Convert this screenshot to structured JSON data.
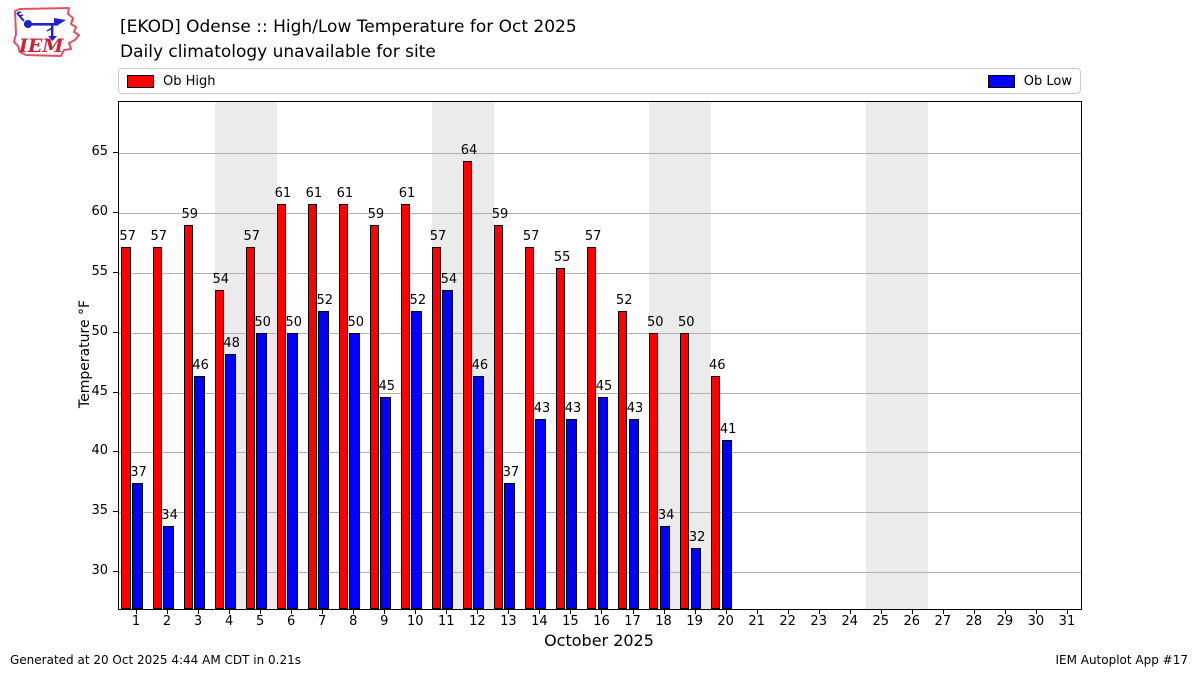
{
  "header": {
    "title": "[EKOD] Odense :: High/Low Temperature for Oct 2025",
    "subtitle": "Daily climatology unavailable for site"
  },
  "logo": {
    "text": "IEM"
  },
  "legend": {
    "high_label": "Ob High",
    "low_label": "Ob Low"
  },
  "chart_data": {
    "type": "bar",
    "title": "[EKOD] Odense :: High/Low Temperature for Oct 2025",
    "subtitle": "Daily climatology unavailable for site",
    "xlabel": "October 2025",
    "ylabel": "Temperature °F",
    "legend_position": "top",
    "grid": "horizontal",
    "xlim": [
      0.42,
      31.42
    ],
    "ylim": [
      26.9,
      69.3
    ],
    "xticks": [
      1,
      2,
      3,
      4,
      5,
      6,
      7,
      8,
      9,
      10,
      11,
      12,
      13,
      14,
      15,
      16,
      17,
      18,
      19,
      20,
      21,
      22,
      23,
      24,
      25,
      26,
      27,
      28,
      29,
      30,
      31
    ],
    "yticks": [
      30,
      35,
      40,
      45,
      50,
      55,
      60,
      65
    ],
    "weekend_bands": [
      [
        3.5,
        5.5
      ],
      [
        10.5,
        12.5
      ],
      [
        17.5,
        19.5
      ],
      [
        24.5,
        26.5
      ]
    ],
    "days": [
      1,
      2,
      3,
      4,
      5,
      6,
      7,
      8,
      9,
      10,
      11,
      12,
      13,
      14,
      15,
      16,
      17,
      18,
      19,
      20
    ],
    "series": [
      {
        "name": "Ob High",
        "color": "#ff0000",
        "values": [
          57.2,
          57.2,
          59.0,
          53.6,
          57.2,
          60.8,
          60.8,
          60.8,
          59.0,
          60.8,
          57.2,
          64.4,
          59.0,
          57.2,
          55.4,
          57.2,
          51.8,
          50.0,
          50.0,
          46.4
        ],
        "labels": [
          "57",
          "57",
          "59",
          "54",
          "57",
          "61",
          "61",
          "61",
          "59",
          "61",
          "57",
          "64",
          "59",
          "57",
          "55",
          "57",
          "52",
          "50",
          "50",
          "46"
        ]
      },
      {
        "name": "Ob Low",
        "color": "#0000ff",
        "values": [
          37.4,
          33.8,
          46.4,
          48.2,
          50.0,
          50.0,
          51.8,
          50.0,
          44.6,
          51.8,
          53.6,
          46.4,
          37.4,
          42.8,
          42.8,
          44.6,
          42.8,
          33.8,
          32.0,
          41.0
        ],
        "labels": [
          "37",
          "34",
          "46",
          "48",
          "50",
          "50",
          "52",
          "50",
          "45",
          "52",
          "54",
          "46",
          "37",
          "43",
          "43",
          "45",
          "43",
          "34",
          "32",
          "41"
        ]
      }
    ]
  },
  "colors": {
    "high": "#ff0000",
    "low": "#0000ff",
    "weekend_band": "#ebebeb",
    "gridline": "#b0b0b0",
    "plot_border": "#000000"
  },
  "footer": {
    "left": "Generated at 20 Oct 2025 4:44 AM CDT in 0.21s",
    "right": "IEM Autoplot App #17"
  }
}
